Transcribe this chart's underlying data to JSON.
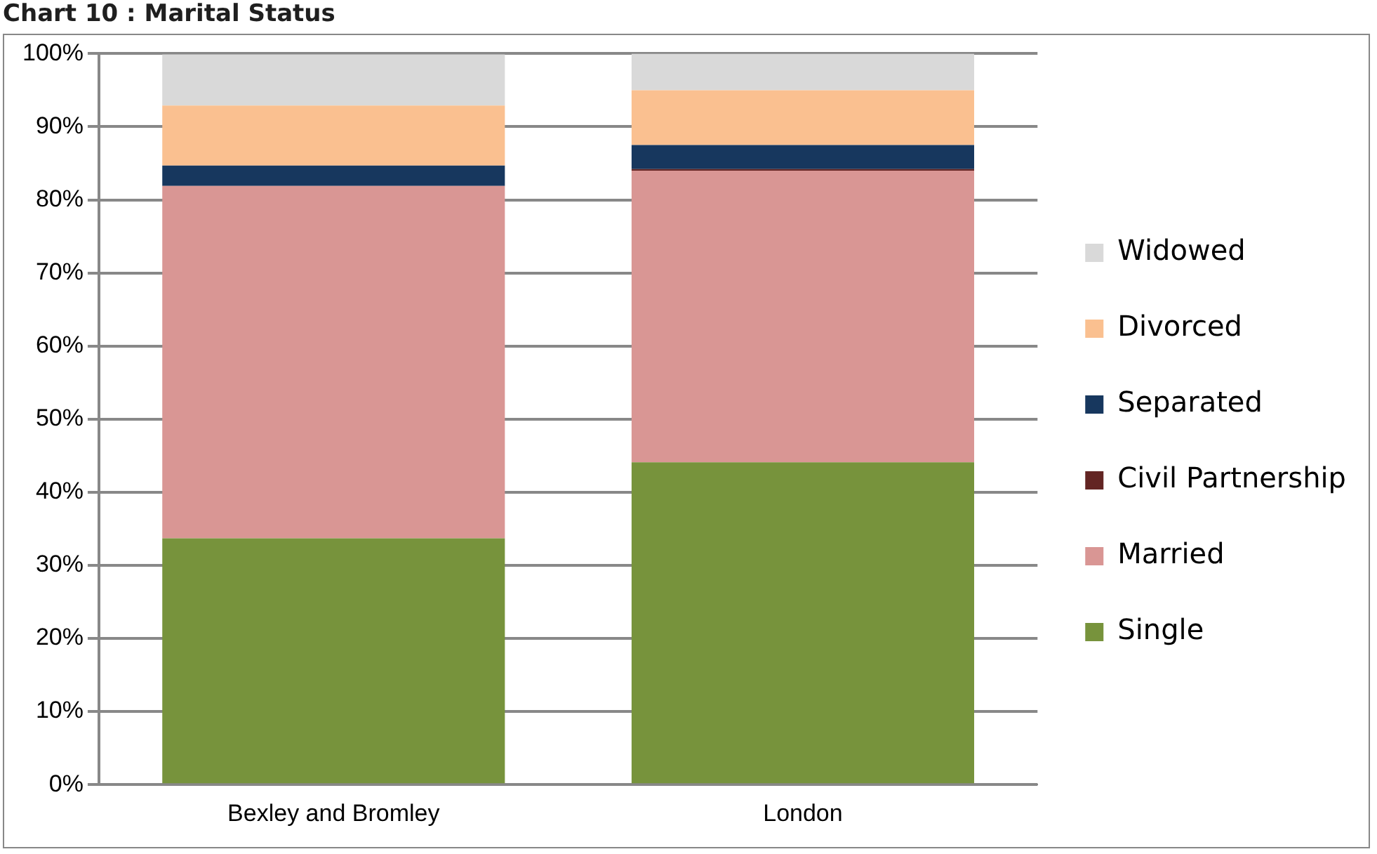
{
  "chart_data": {
    "type": "bar",
    "title": "Chart 10 : Marital Status",
    "stacked": true,
    "categories": [
      "Bexley and Bromley",
      "London"
    ],
    "series": [
      {
        "name": "Single",
        "color": "#77933c",
        "values": [
          33.7,
          44.1
        ]
      },
      {
        "name": "Married",
        "color": "#d99694",
        "values": [
          48.2,
          39.9
        ]
      },
      {
        "name": "Civil Partnership",
        "color": "#632523",
        "values": [
          null,
          0.2
        ]
      },
      {
        "name": "Separated",
        "color": "#17375e",
        "values": [
          2.8,
          3.3
        ]
      },
      {
        "name": "Divorced",
        "color": "#fac090",
        "values": [
          8.2,
          7.5
        ]
      },
      {
        "name": "Widowed",
        "color": "#d9d9d9",
        "values": [
          7.0,
          5.0
        ]
      }
    ],
    "ylim": [
      0,
      100
    ],
    "yticks": [
      {
        "value": 0,
        "label": "0%"
      },
      {
        "value": 10,
        "label": "10%"
      },
      {
        "value": 20,
        "label": "20%"
      },
      {
        "value": 30,
        "label": "30%"
      },
      {
        "value": 40,
        "label": "40%"
      },
      {
        "value": 50,
        "label": "50%"
      },
      {
        "value": 60,
        "label": "60%"
      },
      {
        "value": 70,
        "label": "70%"
      },
      {
        "value": 80,
        "label": "80%"
      },
      {
        "value": 90,
        "label": "90%"
      },
      {
        "value": 100,
        "label": "100%"
      }
    ],
    "grid": "y",
    "legend": "right"
  }
}
